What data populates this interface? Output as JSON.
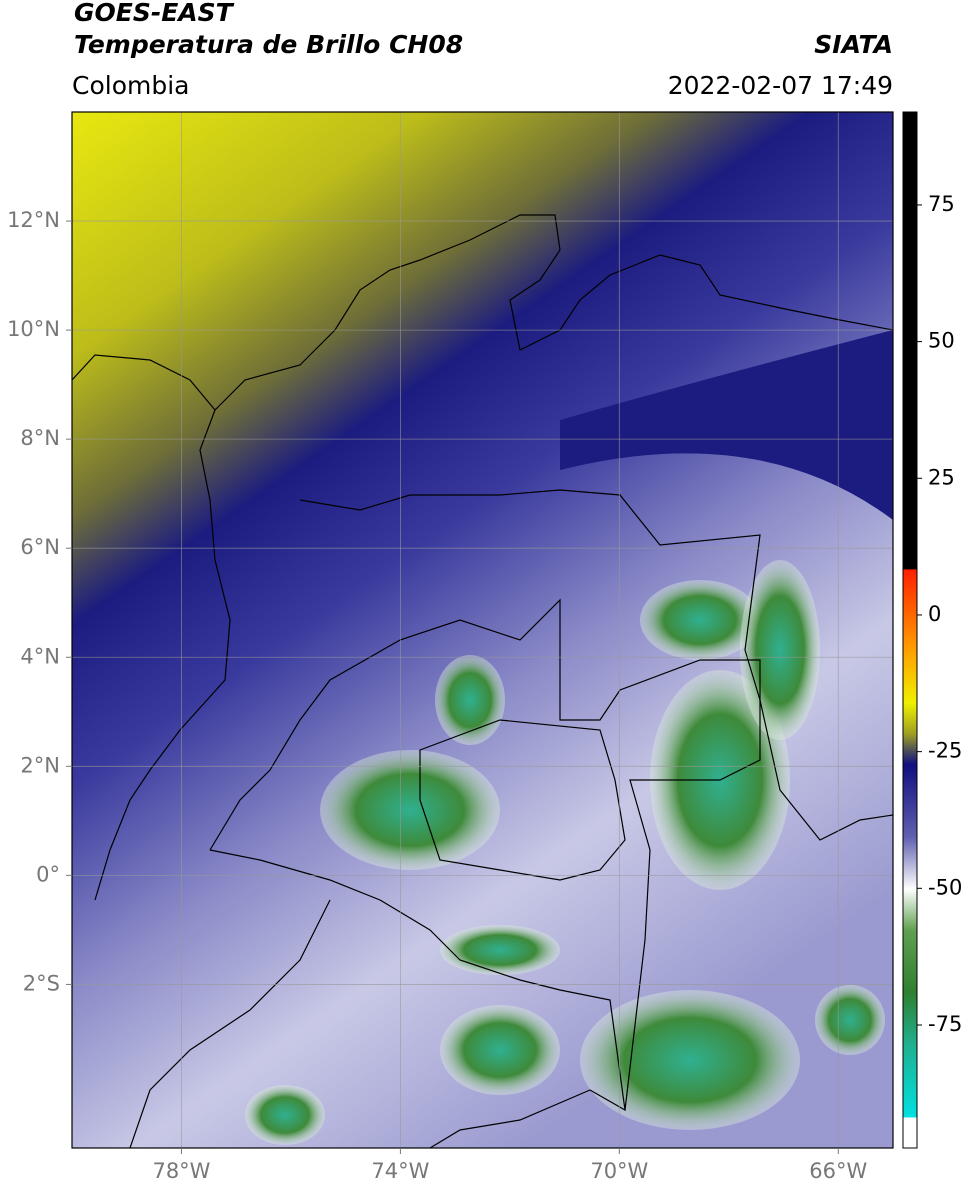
{
  "header": {
    "title": "GOES-EAST",
    "subtitle": "Temperatura de Brillo CH08",
    "source": "SIATA",
    "region": "Colombia",
    "datetime": "2022-02-07 17:49"
  },
  "map": {
    "xlim": [
      -80,
      -65
    ],
    "ylim": [
      -5,
      14
    ],
    "xticks": [
      {
        "value": -78,
        "label": "78°W"
      },
      {
        "value": -74,
        "label": "74°W"
      },
      {
        "value": -70,
        "label": "70°W"
      },
      {
        "value": -66,
        "label": "66°W"
      }
    ],
    "yticks": [
      {
        "value": 12,
        "label": "12°N"
      },
      {
        "value": 10,
        "label": "10°N"
      },
      {
        "value": 8,
        "label": "8°N"
      },
      {
        "value": 6,
        "label": "6°N"
      },
      {
        "value": 4,
        "label": "4°N"
      },
      {
        "value": 2,
        "label": "2°N"
      },
      {
        "value": 0,
        "label": "0°"
      },
      {
        "value": -2,
        "label": "2°S"
      }
    ],
    "grid": true
  },
  "colorbar": {
    "lim": [
      -97.5,
      92
    ],
    "ticks": [
      75,
      50,
      25,
      0,
      -25,
      -50,
      -75
    ]
  }
}
